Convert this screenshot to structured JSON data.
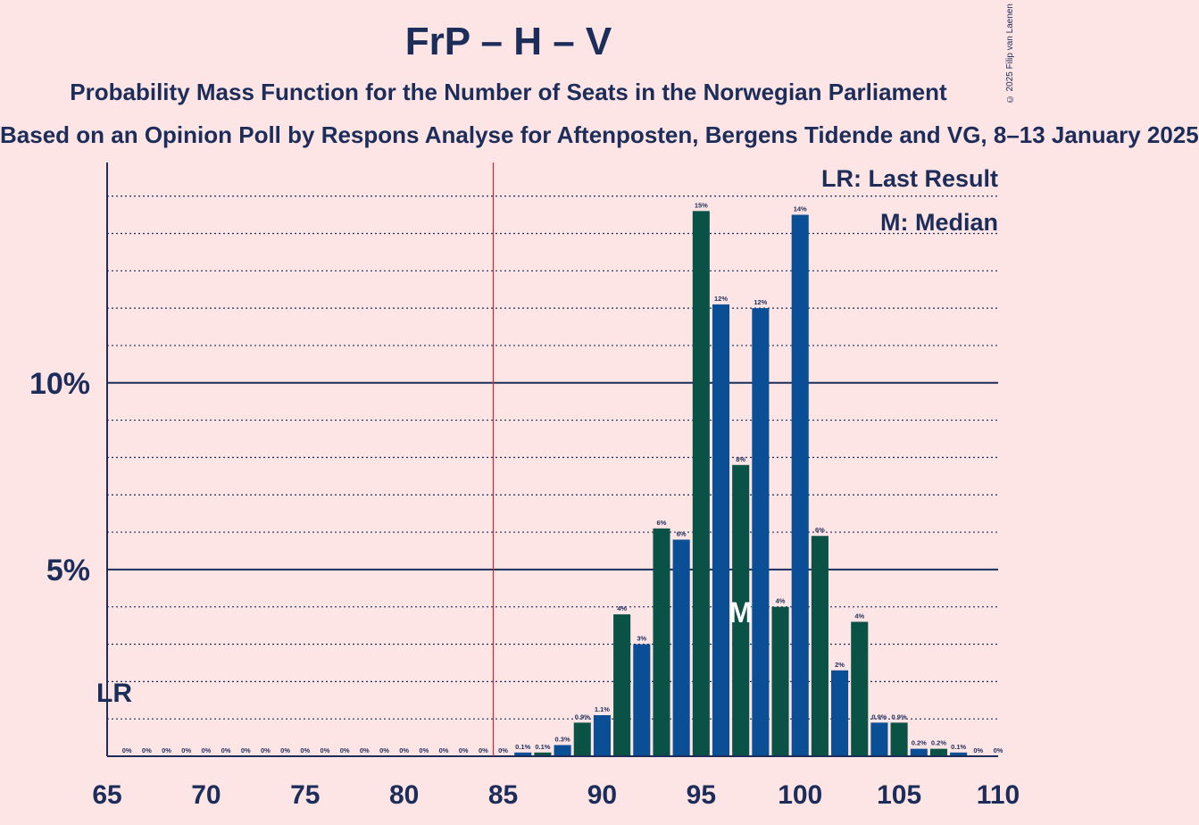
{
  "title": "FrP – H – V",
  "subtitle": "Probability Mass Function for the Number of Seats in the Norwegian Parliament",
  "subsubtitle": "Based on an Opinion Poll by Respons Analyse for Aftenposten, Bergens Tidende and VG, 8–13 January 2025",
  "copyright": "© 2025 Filip van Laenen",
  "colors": {
    "background": "#FDE4E5",
    "bar_blue": "#0A4E95",
    "bar_green": "#0A5245",
    "axis": "#1C2D5A",
    "last_result_line": "#E8202A"
  },
  "legend": {
    "last_result": "LR: Last Result",
    "median": "M: Median"
  },
  "chart_data": {
    "type": "bar",
    "xlabel": "",
    "ylabel": "",
    "xlim": [
      65,
      110
    ],
    "ylim": [
      0,
      15.9
    ],
    "x_ticks": [
      65,
      70,
      75,
      80,
      85,
      90,
      95,
      100,
      105,
      110
    ],
    "y_ticks": [
      {
        "value": 5,
        "label": "5%"
      },
      {
        "value": 10,
        "label": "10%"
      }
    ],
    "grid": "dotted every 1%",
    "last_result": {
      "seats": 85,
      "label": "LR"
    },
    "median": {
      "seats": 97,
      "label": "M"
    },
    "seats": [
      66,
      67,
      68,
      69,
      70,
      71,
      72,
      73,
      74,
      75,
      76,
      77,
      78,
      79,
      80,
      81,
      82,
      83,
      84,
      85,
      86,
      87,
      88,
      89,
      90,
      91,
      92,
      93,
      94,
      95,
      96,
      97,
      98,
      99,
      100,
      101,
      102,
      103,
      104,
      105,
      106,
      107,
      108,
      109,
      110
    ],
    "values": [
      0,
      0,
      0,
      0,
      0,
      0,
      0,
      0,
      0,
      0,
      0,
      0,
      0,
      0,
      0,
      0,
      0,
      0,
      0,
      0,
      0.1,
      0.1,
      0.3,
      0.9,
      1.1,
      3.8,
      3.0,
      6.1,
      5.8,
      14.6,
      12.1,
      7.8,
      12.0,
      4.0,
      14.5,
      5.9,
      2.3,
      3.6,
      0.9,
      0.9,
      0.2,
      0.2,
      0.1,
      0,
      0
    ],
    "labels": [
      "0%",
      "0%",
      "0%",
      "0%",
      "0%",
      "0%",
      "0%",
      "0%",
      "0%",
      "0%",
      "0%",
      "0%",
      "0%",
      "0%",
      "0%",
      "0%",
      "0%",
      "0%",
      "0%",
      "0%",
      "0.1%",
      "0.1%",
      "0.3%",
      "0.9%",
      "1.1%",
      "4%",
      "3%",
      "6%",
      "6%",
      "15%",
      "12%",
      "8%",
      "12%",
      "4%",
      "14%",
      "6%",
      "2%",
      "4%",
      "0.9%",
      "0.9%",
      "0.2%",
      "0.2%",
      "0.1%",
      "0%",
      "0%"
    ]
  }
}
